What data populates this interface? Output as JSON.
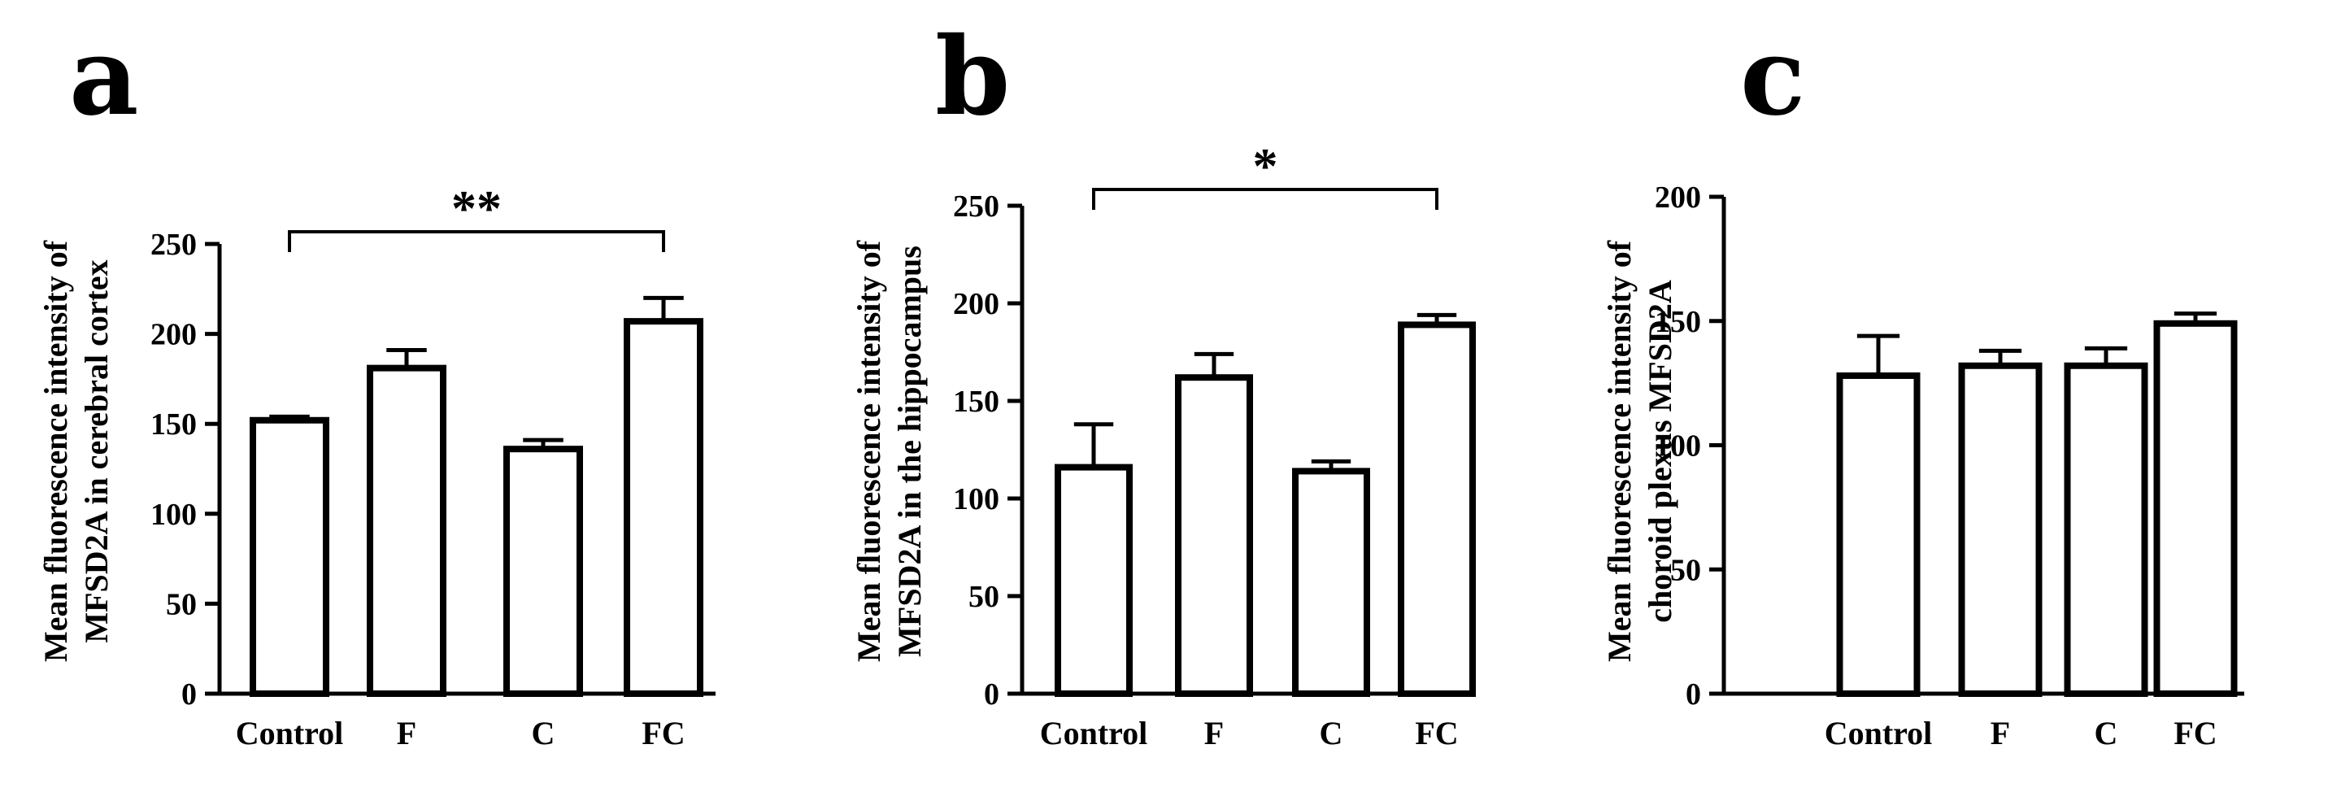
{
  "panels": [
    "a",
    "b",
    "c"
  ],
  "chart_data": [
    {
      "type": "bar",
      "panel": "a",
      "categories": [
        "Control",
        "F",
        "C",
        "FC"
      ],
      "values": [
        152,
        181,
        136,
        207
      ],
      "errors": [
        2,
        10,
        5,
        13
      ],
      "ylabel": [
        "Mean fluorescence intensity of",
        "MFSD2A in cerebral cortex"
      ],
      "xlabel": "",
      "ylim": [
        0,
        250
      ],
      "yticks": [
        "0",
        "50",
        "100",
        "150",
        "200",
        "250"
      ],
      "significance": {
        "from": "Control",
        "to": "FC",
        "label": "**"
      }
    },
    {
      "type": "bar",
      "panel": "b",
      "categories": [
        "Control",
        "F",
        "C",
        "FC"
      ],
      "values": [
        116,
        162,
        114,
        189
      ],
      "errors": [
        22,
        12,
        5,
        5
      ],
      "ylabel": [
        "Mean fluorescence intensity of",
        "MFSD2A in the hippocampus"
      ],
      "xlabel": "",
      "ylim": [
        0,
        250
      ],
      "yticks": [
        "0",
        "50",
        "100",
        "150",
        "200",
        "250"
      ],
      "significance": {
        "from": "Control",
        "to": "FC",
        "label": "*"
      }
    },
    {
      "type": "bar",
      "panel": "c",
      "categories": [
        "Control",
        "F",
        "C",
        "FC"
      ],
      "values": [
        128,
        132,
        132,
        149
      ],
      "errors": [
        16,
        6,
        7,
        4
      ],
      "ylabel": [
        "Mean fluorescence intensity of",
        "choroid plexus MFSD2A"
      ],
      "xlabel": "",
      "ylim": [
        0,
        200
      ],
      "yticks": [
        "0",
        "50",
        "100",
        "150",
        "200"
      ],
      "significance": null
    }
  ]
}
